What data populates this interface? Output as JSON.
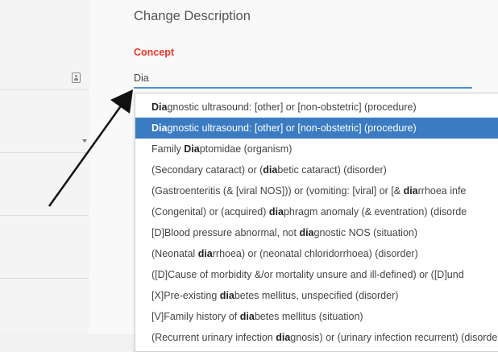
{
  "dialog": {
    "title": "Change Description",
    "field_label": "Concept",
    "input_value": "Dia"
  },
  "dropdown": {
    "selected_index": 1,
    "options": [
      {
        "pre": "",
        "match": "Dia",
        "post": "gnostic ultrasound: [other] or [non-obstetric] (procedure)"
      },
      {
        "pre": "",
        "match": "Dia",
        "post": "gnostic ultrasound: [other] or [non-obstetric] (procedure)"
      },
      {
        "pre": "Family ",
        "match": "Dia",
        "post": "ptomidae (organism)"
      },
      {
        "pre": "(Secondary cataract) or (",
        "match": "dia",
        "post": "betic cataract) (disorder)"
      },
      {
        "pre": "(Gastroenteritis (& [viral NOS])) or (vomiting: [viral] or [& ",
        "match": "dia",
        "post": "rrhoea infe"
      },
      {
        "pre": "(Congenital) or (acquired) ",
        "match": "dia",
        "post": "phragm anomaly (& eventration) (disorde"
      },
      {
        "pre": "[D]Blood pressure abnormal, not ",
        "match": "dia",
        "post": "gnostic NOS (situation)"
      },
      {
        "pre": "(Neonatal ",
        "match": "dia",
        "post": "rrhoea) or (neonatal chloridorrhoea) (disorder)"
      },
      {
        "pre": "([D]Cause of morbidity &/or mortality unsure and ill-defined) or ([D]und",
        "match": "",
        "post": ""
      },
      {
        "pre": "[X]Pre-existing ",
        "match": "dia",
        "post": "betes mellitus, unspecified (disorder)"
      },
      {
        "pre": "[V]Family history of ",
        "match": "dia",
        "post": "betes mellitus (situation)"
      },
      {
        "pre": "(Recurrent urinary infection ",
        "match": "dia",
        "post": "gnosis) or (urinary infection recurrent) (disorder)"
      }
    ]
  },
  "colors": {
    "accent_label": "#e8372a",
    "input_underline": "#4a90d9",
    "selected_bg": "#3a7bc2"
  },
  "icons": {
    "left_panel": "contact-card-icon",
    "left_dropdown": "chevron-down-icon",
    "pointer": "arrow-annotation"
  }
}
